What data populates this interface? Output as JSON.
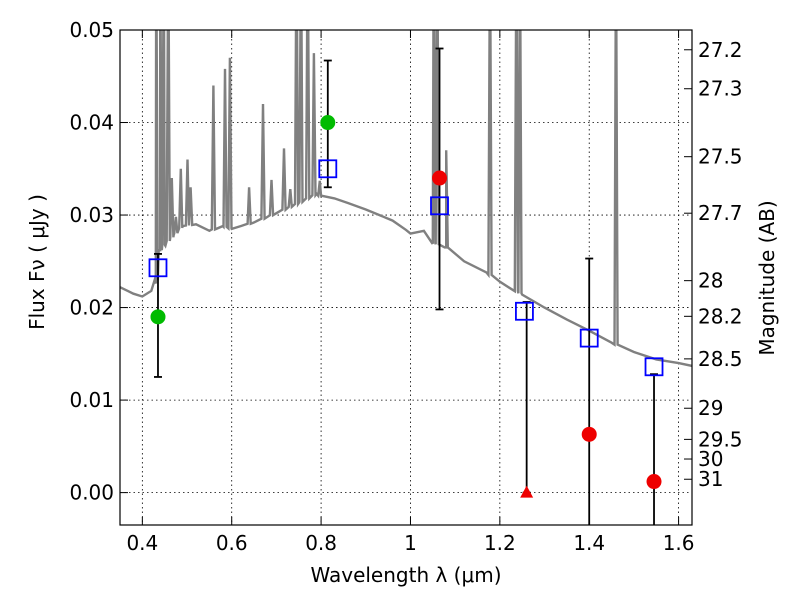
{
  "chart_data": {
    "type": "scatter",
    "title": "",
    "xlabel": "Wavelength  λ (μm)",
    "ylabel": "Flux  Fν  ( μJy )",
    "y2label": "Magnitude (AB)",
    "xlim": [
      0.35,
      1.63
    ],
    "ylim": [
      -0.0035,
      0.05
    ],
    "grid": true,
    "x_ticks": [
      {
        "value": 0.4,
        "label": "0.4"
      },
      {
        "value": 0.6,
        "label": "0.6"
      },
      {
        "value": 0.8,
        "label": "0.8"
      },
      {
        "value": 1.0,
        "label": "1"
      },
      {
        "value": 1.2,
        "label": "1.2"
      },
      {
        "value": 1.4,
        "label": "1.4"
      },
      {
        "value": 1.6,
        "label": "1.6"
      }
    ],
    "y_ticks": [
      {
        "value": 0.0,
        "label": "0.00"
      },
      {
        "value": 0.01,
        "label": "0.01"
      },
      {
        "value": 0.02,
        "label": "0.02"
      },
      {
        "value": 0.03,
        "label": "0.03"
      },
      {
        "value": 0.04,
        "label": "0.04"
      },
      {
        "value": 0.05,
        "label": "0.05"
      }
    ],
    "mag_ticks": [
      {
        "value": 27.2,
        "label": "27.2"
      },
      {
        "value": 27.3,
        "label": "27.3"
      },
      {
        "value": 27.5,
        "label": "27.5"
      },
      {
        "value": 27.7,
        "label": "27.7"
      },
      {
        "value": 28.0,
        "label": "28"
      },
      {
        "value": 28.2,
        "label": "28.2"
      },
      {
        "value": 28.5,
        "label": "28.5"
      },
      {
        "value": 29.0,
        "label": "29"
      },
      {
        "value": 29.5,
        "label": "29.5"
      },
      {
        "value": 30.0,
        "label": "30"
      },
      {
        "value": 31.0,
        "label": "31"
      }
    ],
    "series": [
      {
        "kind": "sed_model",
        "color": "#808080",
        "continuum": [
          [
            0.35,
            0.0222
          ],
          [
            0.38,
            0.0215
          ],
          [
            0.4,
            0.0212
          ],
          [
            0.42,
            0.0218
          ],
          [
            0.43,
            0.0226
          ],
          [
            0.44,
            0.0262
          ],
          [
            0.45,
            0.0268
          ],
          [
            0.47,
            0.0278
          ],
          [
            0.49,
            0.0288
          ],
          [
            0.52,
            0.029
          ],
          [
            0.55,
            0.0283
          ],
          [
            0.58,
            0.0288
          ],
          [
            0.6,
            0.0285
          ],
          [
            0.62,
            0.0288
          ],
          [
            0.65,
            0.0292
          ],
          [
            0.7,
            0.0302
          ],
          [
            0.75,
            0.0313
          ],
          [
            0.79,
            0.0323
          ],
          [
            0.8,
            0.032
          ],
          [
            0.83,
            0.0318
          ],
          [
            0.86,
            0.0313
          ],
          [
            0.9,
            0.0306
          ],
          [
            0.93,
            0.03
          ],
          [
            0.96,
            0.0294
          ],
          [
            0.99,
            0.0284
          ],
          [
            1.0,
            0.028
          ],
          [
            1.03,
            0.0283
          ],
          [
            1.05,
            0.027
          ],
          [
            1.08,
            0.0265
          ],
          [
            1.12,
            0.025
          ],
          [
            1.17,
            0.0238
          ],
          [
            1.2,
            0.0228
          ],
          [
            1.25,
            0.0214
          ],
          [
            1.3,
            0.02
          ],
          [
            1.35,
            0.0187
          ],
          [
            1.4,
            0.0175
          ],
          [
            1.45,
            0.0162
          ],
          [
            1.5,
            0.0152
          ],
          [
            1.55,
            0.0144
          ],
          [
            1.6,
            0.014
          ],
          [
            1.63,
            0.0137
          ]
        ],
        "lines": [
          [
            0.431,
            0.06
          ],
          [
            0.44,
            0.06
          ],
          [
            0.448,
            0.06
          ],
          [
            0.458,
            0.06
          ],
          [
            0.466,
            0.034
          ],
          [
            0.475,
            0.0298
          ],
          [
            0.486,
            0.035
          ],
          [
            0.501,
            0.036
          ],
          [
            0.508,
            0.033
          ],
          [
            0.559,
            0.044
          ],
          [
            0.585,
            0.0458
          ],
          [
            0.596,
            0.047
          ],
          [
            0.639,
            0.033
          ],
          [
            0.67,
            0.042
          ],
          [
            0.689,
            0.0338
          ],
          [
            0.717,
            0.0372
          ],
          [
            0.731,
            0.0328
          ],
          [
            0.745,
            0.06
          ],
          [
            0.755,
            0.06
          ],
          [
            0.77,
            0.06
          ],
          [
            0.784,
            0.0475
          ],
          [
            0.797,
            0.0337
          ],
          [
            1.052,
            0.06
          ],
          [
            1.06,
            0.06
          ],
          [
            1.08,
            0.037
          ],
          [
            1.178,
            0.06
          ],
          [
            1.237,
            0.06
          ],
          [
            1.245,
            0.06
          ],
          [
            1.46,
            0.06
          ]
        ]
      },
      {
        "kind": "model_photometry",
        "name": "",
        "marker": "square",
        "color": "#0000ff",
        "points": [
          [
            0.435,
            0.0243
          ],
          [
            0.815,
            0.035
          ],
          [
            1.065,
            0.031
          ],
          [
            1.255,
            0.0196
          ],
          [
            1.4,
            0.0167
          ],
          [
            1.545,
            0.0136
          ]
        ]
      },
      {
        "kind": "observed",
        "name": "",
        "points": [
          {
            "x": 0.435,
            "y": 0.019,
            "err_low": 0.0125,
            "err_high": 0.0258,
            "marker": "circle",
            "color": "#00bb00"
          },
          {
            "x": 0.815,
            "y": 0.04,
            "err_low": 0.033,
            "err_high": 0.0467,
            "marker": "circle",
            "color": "#00bb00"
          },
          {
            "x": 1.065,
            "y": 0.034,
            "err_low": 0.0198,
            "err_high": 0.048,
            "marker": "circle",
            "color": "#ee0000"
          },
          {
            "x": 1.26,
            "y": 0.0,
            "err_low": 0.0,
            "err_high": 0.0206,
            "marker": "triangle",
            "color": "#ee0000"
          },
          {
            "x": 1.4,
            "y": 0.0063,
            "err_low": -0.0035,
            "err_high": 0.0253,
            "marker": "circle",
            "color": "#ee0000"
          },
          {
            "x": 1.545,
            "y": 0.0012,
            "err_low": -0.0035,
            "err_high": 0.0128,
            "marker": "circle",
            "color": "#ee0000"
          }
        ]
      }
    ]
  }
}
